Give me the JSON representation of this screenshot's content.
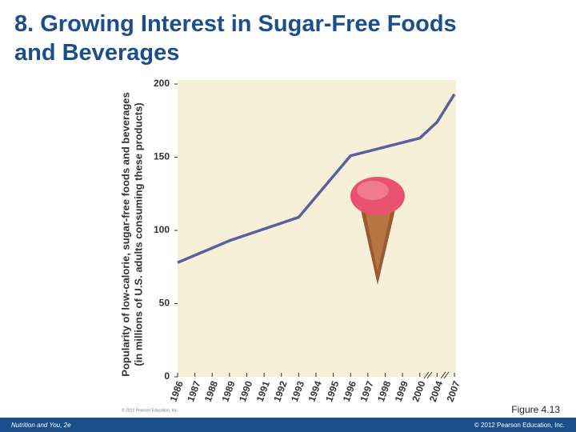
{
  "slide_title": "8. Growing Interest in Sugar-Free Foods and Beverages",
  "chart_data": {
    "type": "line",
    "ylabel": [
      "Popularity of low-calorie, sugar-free foods and beverages",
      "(in millions of U.S. adults consuming these products)"
    ],
    "categories": [
      "1986",
      "1987",
      "1988",
      "1989",
      "1990",
      "1991",
      "1992",
      "1993",
      "1994",
      "1995",
      "1996",
      "1997",
      "1998",
      "1999",
      "2000",
      "2004",
      "2007"
    ],
    "series": [
      {
        "color": "#5a5fa0",
        "values": [
          78,
          83,
          88,
          93,
          97,
          101,
          105,
          109,
          123,
          137,
          151,
          154,
          157,
          160,
          163,
          174,
          193
        ]
      }
    ],
    "ylim": [
      0,
      200
    ],
    "yticks": [
      0,
      50,
      100,
      150,
      200
    ],
    "grid": false,
    "credit": "© 2012 Pearson Education, Inc."
  },
  "figure_label": "Figure 4.13",
  "footer": {
    "left": "Nutrition and You, 2e",
    "right": "© 2012 Pearson Education, Inc."
  }
}
